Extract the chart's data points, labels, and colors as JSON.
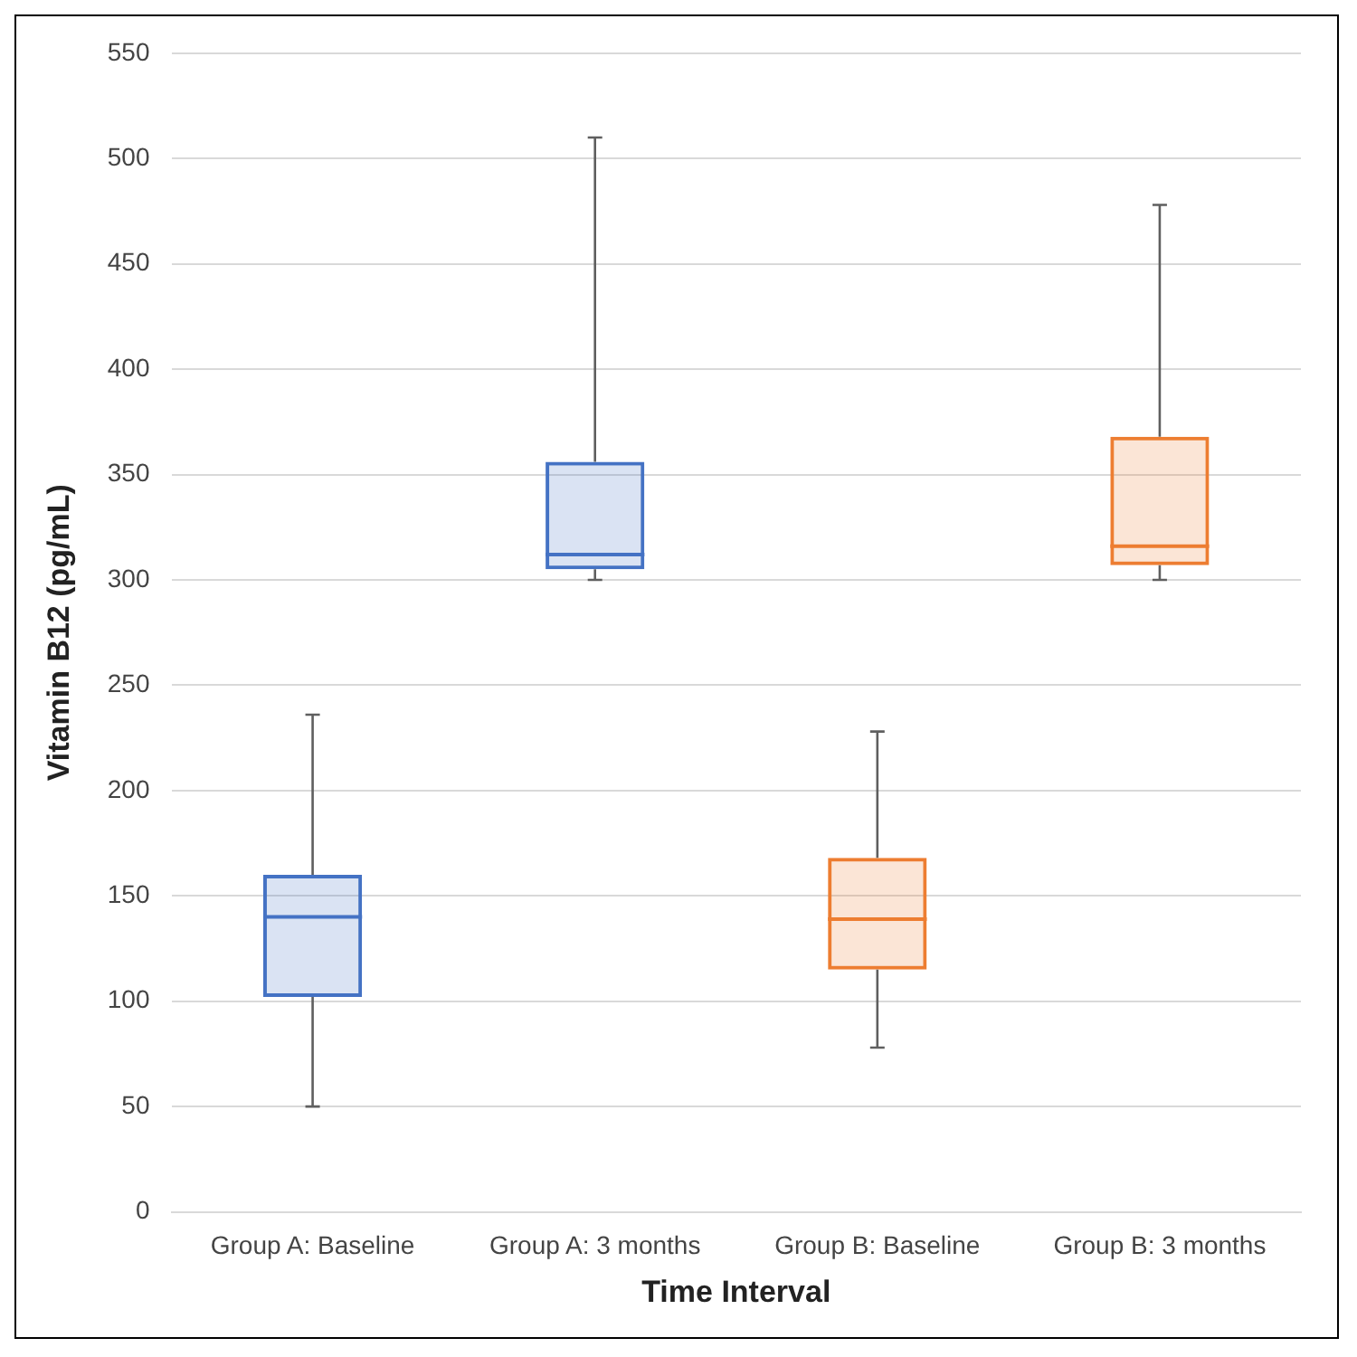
{
  "chart_data": {
    "type": "box",
    "xlabel": "Time Interval",
    "ylabel": "Vitamin B12 (pg/mL)",
    "categories": [
      "Group A: Baseline",
      "Group A: 3 months",
      "Group B: Baseline",
      "Group B: 3 months"
    ],
    "boxes": [
      {
        "low": 50,
        "q1": 102,
        "median": 140,
        "q3": 160,
        "high": 236
      },
      {
        "low": 300,
        "q1": 305,
        "median": 312,
        "q3": 356,
        "high": 510
      },
      {
        "low": 78,
        "q1": 115,
        "median": 139,
        "q3": 168,
        "high": 228
      },
      {
        "low": 300,
        "q1": 307,
        "median": 316,
        "q3": 368,
        "high": 478
      }
    ],
    "colors": [
      "#4472c4",
      "#4472c4",
      "#ed7d31",
      "#ed7d31"
    ],
    "ylim": [
      0,
      550
    ],
    "yticks": [
      0,
      50,
      100,
      150,
      200,
      250,
      300,
      350,
      400,
      450,
      500,
      550
    ],
    "grid": "y",
    "legend": false
  }
}
